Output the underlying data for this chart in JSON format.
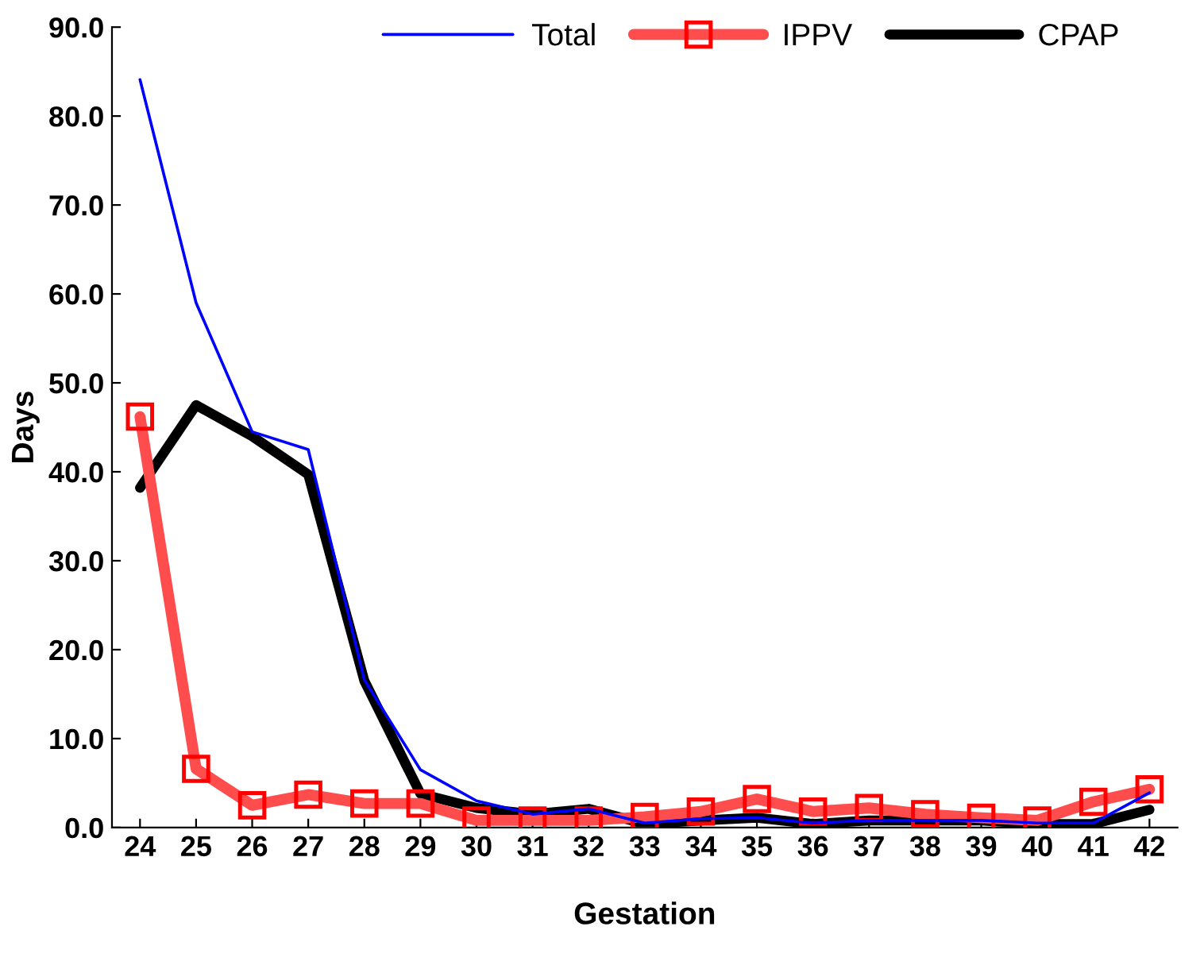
{
  "chart_data": {
    "type": "line",
    "xlabel": "Gestation",
    "ylabel": "Days",
    "categories": [
      "24",
      "25",
      "26",
      "27",
      "28",
      "29",
      "30",
      "31",
      "32",
      "33",
      "34",
      "35",
      "36",
      "37",
      "38",
      "39",
      "40",
      "41",
      "42"
    ],
    "series": [
      {
        "name": "Total",
        "color": "#0000ff",
        "marker": "none",
        "values": [
          84.1,
          59.0,
          44.5,
          42.5,
          16.6,
          6.5,
          3.0,
          1.5,
          2.1,
          0.5,
          1.0,
          1.1,
          0.5,
          0.8,
          0.8,
          0.8,
          0.5,
          0.5,
          3.9
        ]
      },
      {
        "name": "IPPV",
        "color": "#ff4d4d",
        "marker": "square",
        "values": [
          46.2,
          6.6,
          2.5,
          3.7,
          2.7,
          2.7,
          0.8,
          0.8,
          0.8,
          1.2,
          1.8,
          3.2,
          1.8,
          2.2,
          1.5,
          1.1,
          0.8,
          2.9,
          4.3
        ]
      },
      {
        "name": "CPAP",
        "color": "#000000",
        "marker": "none",
        "values": [
          38.2,
          47.5,
          44.0,
          39.7,
          16.5,
          3.8,
          2.2,
          1.5,
          2.1,
          0.4,
          0.8,
          1.1,
          0.4,
          0.8,
          0.8,
          0.8,
          0.4,
          0.4,
          2.0
        ]
      }
    ],
    "ylim": [
      0,
      90
    ],
    "yticks": [
      {
        "value": 0,
        "label": "0.0"
      },
      {
        "value": 10,
        "label": "10.0"
      },
      {
        "value": 20,
        "label": "20.0"
      },
      {
        "value": 30,
        "label": "30.0"
      },
      {
        "value": 40,
        "label": "40.0"
      },
      {
        "value": 50,
        "label": "50.0"
      },
      {
        "value": 60,
        "label": "60.0"
      },
      {
        "value": 70,
        "label": "70.0"
      },
      {
        "value": 80,
        "label": "80.0"
      },
      {
        "value": 90,
        "label": "90.0"
      }
    ],
    "legend": "top"
  }
}
